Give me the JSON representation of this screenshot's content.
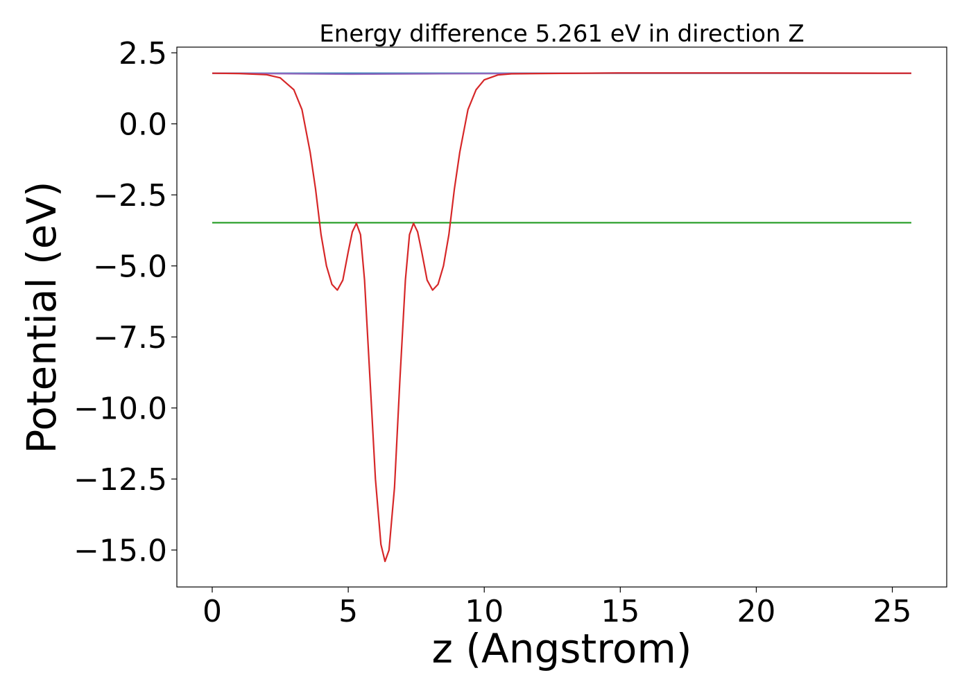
{
  "chart_data": {
    "type": "line",
    "title": "Energy difference 5.261 eV in direction Z",
    "xlabel": "z (Angstrom)",
    "ylabel": "Potential (eV)",
    "xlim": [
      -1.3,
      27.0
    ],
    "ylim": [
      -16.3,
      2.7
    ],
    "x_ticks": [
      0,
      5,
      10,
      15,
      20,
      25
    ],
    "x_tick_labels": [
      "0",
      "5",
      "10",
      "15",
      "20",
      "25"
    ],
    "y_ticks": [
      2.5,
      0.0,
      -2.5,
      -5.0,
      -7.5,
      -10.0,
      -12.5,
      -15.0
    ],
    "y_tick_labels": [
      "2.5",
      "0.0",
      "−2.5",
      "−5.0",
      "−7.5",
      "−10.0",
      "−12.5",
      "−15.0"
    ],
    "grid": false,
    "legend": "none",
    "series": [
      {
        "color": "#1f77b4",
        "x": [
          0,
          25.7
        ],
        "y": [
          1.78,
          1.78
        ]
      },
      {
        "color": "#2ca02c",
        "x": [
          0,
          25.7
        ],
        "y": [
          -3.48,
          -3.48
        ]
      },
      {
        "color": "#9467bd",
        "x": [
          0,
          2,
          5,
          8,
          10.7,
          15,
          20,
          25.7
        ],
        "y": [
          1.78,
          1.77,
          1.75,
          1.76,
          1.77,
          1.79,
          1.79,
          1.78
        ]
      },
      {
        "color": "#d62728",
        "x": [
          0,
          1.0,
          2.0,
          2.5,
          3.0,
          3.3,
          3.6,
          3.8,
          4.0,
          4.2,
          4.4,
          4.6,
          4.8,
          5.0,
          5.15,
          5.3,
          5.45,
          5.6,
          5.8,
          6.0,
          6.2,
          6.35,
          6.5,
          6.7,
          6.9,
          7.1,
          7.25,
          7.4,
          7.55,
          7.7,
          7.9,
          8.1,
          8.3,
          8.5,
          8.7,
          8.9,
          9.1,
          9.4,
          9.7,
          10.0,
          10.5,
          11.0,
          12.0,
          15.0,
          20.0,
          25.7
        ],
        "y": [
          1.78,
          1.77,
          1.73,
          1.62,
          1.2,
          0.5,
          -1.0,
          -2.3,
          -3.9,
          -5.0,
          -5.65,
          -5.85,
          -5.5,
          -4.5,
          -3.8,
          -3.5,
          -3.9,
          -5.5,
          -9.0,
          -12.5,
          -14.8,
          -15.4,
          -15.0,
          -12.8,
          -9.0,
          -5.5,
          -3.9,
          -3.5,
          -3.8,
          -4.5,
          -5.5,
          -5.85,
          -5.65,
          -5.0,
          -3.9,
          -2.3,
          -1.0,
          0.5,
          1.2,
          1.55,
          1.72,
          1.76,
          1.77,
          1.79,
          1.79,
          1.78
        ]
      }
    ]
  }
}
